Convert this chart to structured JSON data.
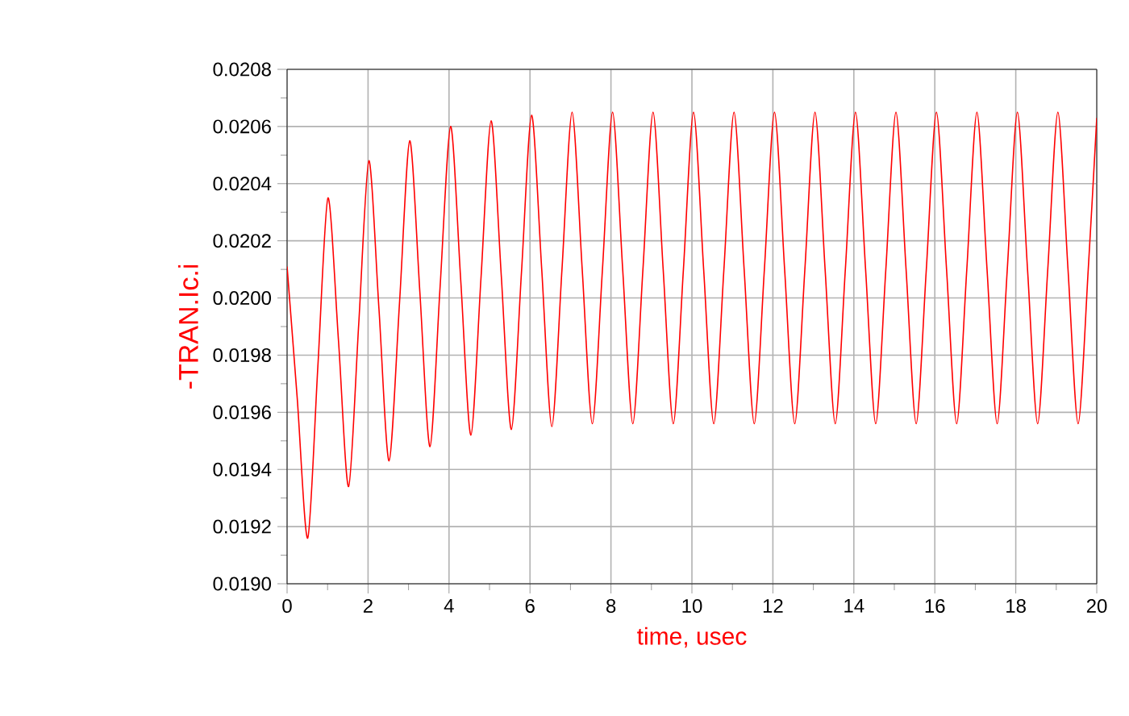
{
  "chart_data": {
    "type": "line",
    "xlabel": "time, usec",
    "ylabel": "-TRAN.Ic.i",
    "x": [
      0,
      0.25,
      0.51,
      0.76,
      1.01,
      1.27,
      1.52,
      1.77,
      2.02,
      2.27,
      2.52,
      2.78,
      3.03,
      3.28,
      3.53,
      3.78,
      4.04,
      4.29,
      4.54,
      4.79,
      5.04,
      5.29,
      5.54,
      5.79,
      6.04,
      6.29,
      6.54,
      6.79,
      7.04,
      7.29,
      7.54,
      7.79,
      8.04,
      8.29,
      8.54,
      8.79,
      9.04,
      9.29,
      9.54,
      9.79,
      10.04,
      10.29,
      10.54,
      10.79,
      11.04,
      11.29,
      11.54,
      11.79,
      12.04,
      12.29,
      12.54,
      12.79,
      13.04,
      13.29,
      13.54,
      13.79,
      14.04,
      14.29,
      14.54,
      14.79,
      15.04,
      15.29,
      15.54,
      15.79,
      16.04,
      16.29,
      16.54,
      16.79,
      17.04,
      17.29,
      17.54,
      17.79,
      18.04,
      18.29,
      18.54,
      18.79,
      19.04,
      19.29,
      19.54,
      19.79,
      20
    ],
    "series": [
      {
        "color": "#ff0000",
        "values": [
          0.02011,
          0.01965,
          0.01916,
          0.01976,
          0.02035,
          0.01985,
          0.01934,
          0.01991,
          0.02048,
          0.01996,
          0.01943,
          0.01999,
          0.02055,
          0.02002,
          0.01948,
          0.02004,
          0.0206,
          0.02006,
          0.01952,
          0.02007,
          0.02062,
          0.02008,
          0.01954,
          0.02009,
          0.02064,
          0.0201,
          0.01955,
          0.0201,
          0.02065,
          0.0201,
          0.01956,
          0.0201,
          0.02065,
          0.0201,
          0.01956,
          0.0201,
          0.02065,
          0.0201,
          0.01956,
          0.0201,
          0.02065,
          0.0201,
          0.01956,
          0.0201,
          0.02065,
          0.0201,
          0.01956,
          0.0201,
          0.02065,
          0.0201,
          0.01956,
          0.0201,
          0.02065,
          0.0201,
          0.01956,
          0.0201,
          0.02065,
          0.0201,
          0.01956,
          0.0201,
          0.02065,
          0.0201,
          0.01956,
          0.0201,
          0.02065,
          0.0201,
          0.01956,
          0.0201,
          0.02065,
          0.0201,
          0.01956,
          0.0201,
          0.02065,
          0.0201,
          0.01956,
          0.0201,
          0.02065,
          0.0201,
          0.01956,
          0.0201,
          0.02063
        ]
      }
    ],
    "xlim": [
      0,
      20
    ],
    "xticks": [
      0,
      2,
      4,
      6,
      8,
      10,
      12,
      14,
      16,
      18,
      20
    ],
    "ylim": [
      0.019,
      0.0208
    ],
    "yticks": [
      {
        "value": 0.019,
        "label": "0.0190"
      },
      0.0192,
      0.0194,
      0.0196,
      0.0198,
      {
        "value": 0.02,
        "label": "0.0200"
      },
      0.0202,
      0.0204,
      0.0206,
      0.0208
    ],
    "grid": true,
    "marker": "none",
    "line_style": "solid"
  }
}
